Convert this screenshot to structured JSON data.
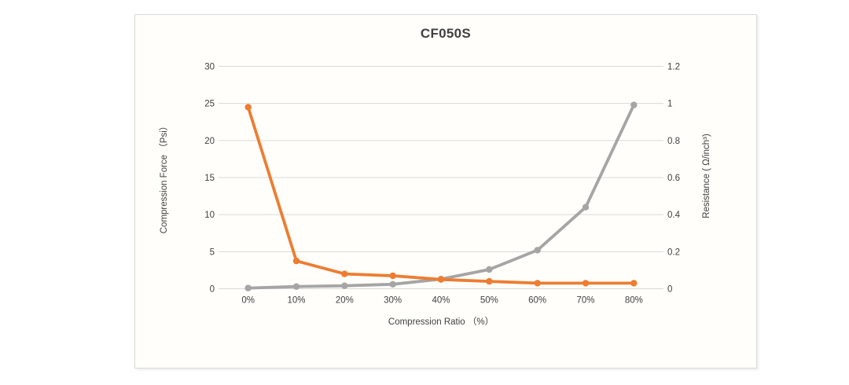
{
  "chart": {
    "frame_background": "#fffefb",
    "frame_border_color": "#d9d9d9",
    "text_color": "#404040",
    "gridline_color": "#d9d9d9"
  },
  "chart_data": {
    "type": "line",
    "title": "CF050S",
    "categories": [
      "0%",
      "10%",
      "20%",
      "30%",
      "40%",
      "50%",
      "60%",
      "70%",
      "80%"
    ],
    "series": [
      {
        "name": "Compression Force",
        "axis": "left",
        "color": "#A5A5A5",
        "values": [
          0.1,
          0.3,
          0.4,
          0.6,
          1.3,
          2.6,
          5.2,
          11,
          24.8
        ]
      },
      {
        "name": "Resistance",
        "axis": "right",
        "color": "#ED7D31",
        "values": [
          0.98,
          0.15,
          0.08,
          0.07,
          0.05,
          0.04,
          0.03,
          0.03,
          0.03
        ]
      }
    ],
    "xlabel": "Compression Ratio （%）",
    "ylabel_left": "Compression Force （Psi）",
    "ylabel_right": "Resistance ( Ω/inch³)",
    "y_left_ticks": [
      0,
      5,
      10,
      15,
      20,
      25,
      30
    ],
    "y_right_ticks": [
      0,
      0.2,
      0.4,
      0.6,
      0.8,
      1,
      1.2
    ],
    "y_left_range": [
      0,
      30
    ],
    "y_right_range": [
      0,
      1.2
    ],
    "grid": "horizontal",
    "legend": "none",
    "marker": "circle"
  }
}
